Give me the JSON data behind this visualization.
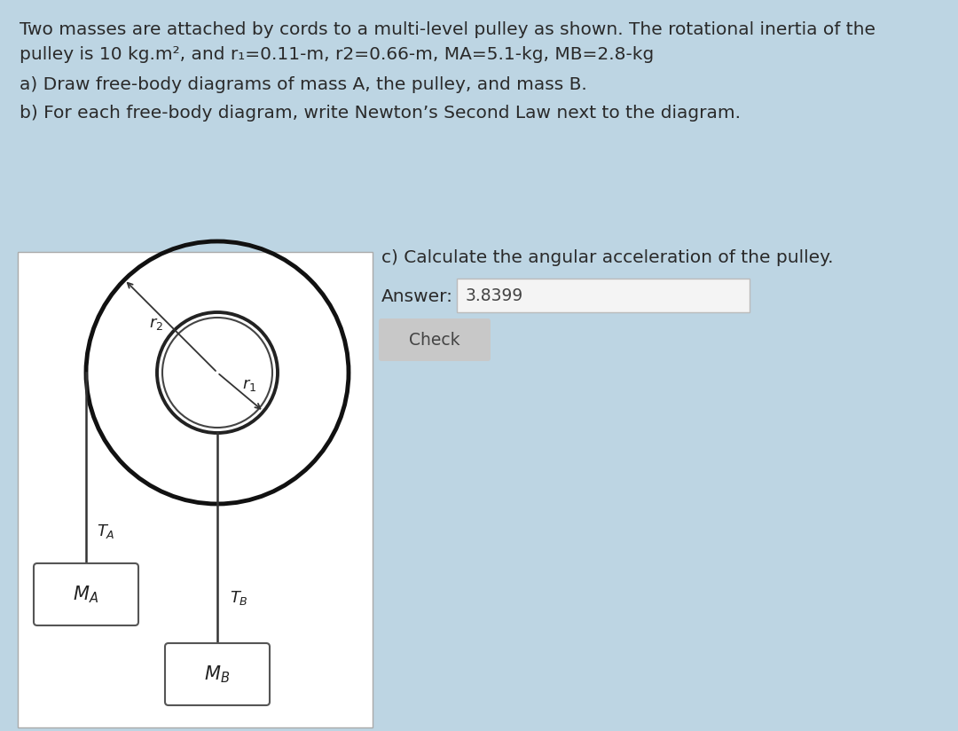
{
  "bg_color": "#bdd5e3",
  "title_text1": "Two masses are attached by cords to a multi-level pulley as shown. The rotational inertia of the",
  "title_text2": "pulley is 10 kg.m², and r₁=0.11-m, r2=0.66-m, MA=5.1-kg, MB=2.8-kg",
  "part_a": "a) Draw free-body diagrams of mass A, the pulley, and mass B.",
  "part_b": "b) For each free-body diagram, write Newton’s Second Law next to the diagram.",
  "part_c": "c) Calculate the angular acceleration of the pulley.",
  "answer_label": "Answer:",
  "answer_value": "3.8399",
  "check_label": "Check"
}
